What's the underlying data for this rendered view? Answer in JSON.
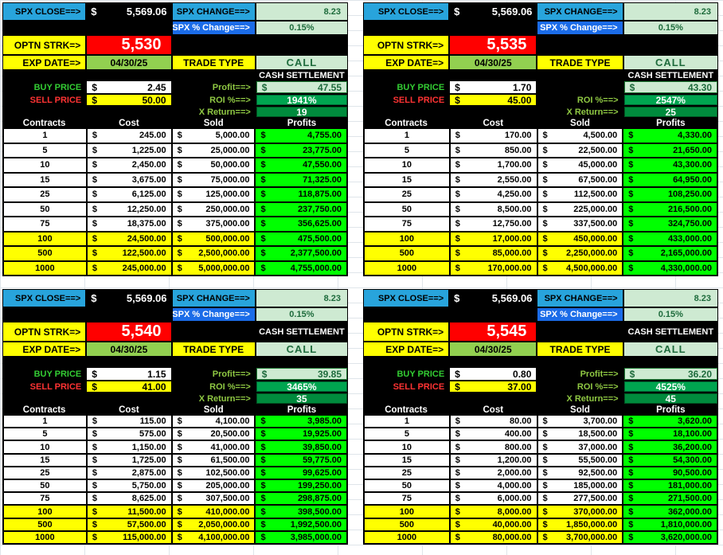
{
  "quadrants": [
    {
      "cur": "$",
      "spx_close_label": "SPX CLOSE==>",
      "spx_close_value": "5,569.06",
      "spx_change_label": "SPX CHANGE==>",
      "spx_change_value": "8.23",
      "spx_pct_label": "SPX % Change==>",
      "spx_pct_value": "0.15%",
      "optn_strk_label": "OPTN STRK=>",
      "optn_strk_value": "5,530",
      "cash_settlement_beside": "",
      "cash_settlement_below": "CASH SETTLEMENT",
      "exp_date_label": "EXP DATE=>",
      "exp_date_value": "04/30/25",
      "trade_type_label": "TRADE TYPE",
      "trade_type_value": "CALL",
      "buy_price_label": "BUY PRICE",
      "buy_price_value": "2.45",
      "profit_label": "Profit==>",
      "profit_value": "47.55",
      "sell_price_label": "SELL PRICE",
      "sell_price_value": "50.00",
      "roi_label": "ROI %==>",
      "roi_value": "1941%",
      "xreturn_label": "X Return==>",
      "xreturn_value": "19",
      "table": {
        "headers": [
          "Contracts",
          "Cost",
          "Sold",
          "Profits"
        ],
        "rows": [
          {
            "contracts": "1",
            "cost": "245.00",
            "sold": "5,000.00",
            "profits": "4,755.00",
            "highlight": false
          },
          {
            "contracts": "5",
            "cost": "1,225.00",
            "sold": "25,000.00",
            "profits": "23,775.00",
            "highlight": false
          },
          {
            "contracts": "10",
            "cost": "2,450.00",
            "sold": "50,000.00",
            "profits": "47,550.00",
            "highlight": false
          },
          {
            "contracts": "15",
            "cost": "3,675.00",
            "sold": "75,000.00",
            "profits": "71,325.00",
            "highlight": false
          },
          {
            "contracts": "25",
            "cost": "6,125.00",
            "sold": "125,000.00",
            "profits": "118,875.00",
            "highlight": false
          },
          {
            "contracts": "50",
            "cost": "12,250.00",
            "sold": "250,000.00",
            "profits": "237,750.00",
            "highlight": false
          },
          {
            "contracts": "75",
            "cost": "18,375.00",
            "sold": "375,000.00",
            "profits": "356,625.00",
            "highlight": false
          },
          {
            "contracts": "100",
            "cost": "24,500.00",
            "sold": "500,000.00",
            "profits": "475,500.00",
            "highlight": true
          },
          {
            "contracts": "500",
            "cost": "122,500.00",
            "sold": "2,500,000.00",
            "profits": "2,377,500.00",
            "highlight": true
          },
          {
            "contracts": "1000",
            "cost": "245,000.00",
            "sold": "5,000,000.00",
            "profits": "4,755,000.00",
            "highlight": true
          }
        ]
      }
    },
    {
      "cur": "$",
      "spx_close_label": "SPX CLOSE==>",
      "spx_close_value": "5,569.06",
      "spx_change_label": "SPX CHANGE==>",
      "spx_change_value": "8.23",
      "spx_pct_label": "SPX % Change==>",
      "spx_pct_value": "0.15%",
      "optn_strk_label": "OPTN STRK=>",
      "optn_strk_value": "5,535",
      "cash_settlement_beside": "",
      "cash_settlement_below": "CASH SETTLEMENT",
      "exp_date_label": "EXP DATE=>",
      "exp_date_value": "04/30/25",
      "trade_type_label": "TRADE TYPE",
      "trade_type_value": "CALL",
      "buy_price_label": "BUY PRICE",
      "buy_price_value": "1.70",
      "profit_label": "",
      "profit_value": "43.30",
      "sell_price_label": "SELL PRICE",
      "sell_price_value": "45.00",
      "roi_label": "ROI %==>",
      "roi_value": "2547%",
      "xreturn_label": "X Return==>",
      "xreturn_value": "25",
      "table": {
        "headers": [
          "Contracts",
          "Cost",
          "Sold",
          "Profits"
        ],
        "rows": [
          {
            "contracts": "1",
            "cost": "170.00",
            "sold": "4,500.00",
            "profits": "4,330.00",
            "highlight": false
          },
          {
            "contracts": "5",
            "cost": "850.00",
            "sold": "22,500.00",
            "profits": "21,650.00",
            "highlight": false
          },
          {
            "contracts": "10",
            "cost": "1,700.00",
            "sold": "45,000.00",
            "profits": "43,300.00",
            "highlight": false
          },
          {
            "contracts": "15",
            "cost": "2,550.00",
            "sold": "67,500.00",
            "profits": "64,950.00",
            "highlight": false
          },
          {
            "contracts": "25",
            "cost": "4,250.00",
            "sold": "112,500.00",
            "profits": "108,250.00",
            "highlight": false
          },
          {
            "contracts": "50",
            "cost": "8,500.00",
            "sold": "225,000.00",
            "profits": "216,500.00",
            "highlight": false
          },
          {
            "contracts": "75",
            "cost": "12,750.00",
            "sold": "337,500.00",
            "profits": "324,750.00",
            "highlight": false
          },
          {
            "contracts": "100",
            "cost": "17,000.00",
            "sold": "450,000.00",
            "profits": "433,000.00",
            "highlight": true
          },
          {
            "contracts": "500",
            "cost": "85,000.00",
            "sold": "2,250,000.00",
            "profits": "2,165,000.00",
            "highlight": true
          },
          {
            "contracts": "1000",
            "cost": "170,000.00",
            "sold": "4,500,000.00",
            "profits": "4,330,000.00",
            "highlight": true
          }
        ]
      }
    },
    {
      "cur": "$",
      "spx_close_label": "SPX CLOSE==>",
      "spx_close_value": "5,569.06",
      "spx_change_label": "SPX CHANGE==>",
      "spx_change_value": "8.23",
      "spx_pct_label": "SPX % Change==>",
      "spx_pct_value": "0.15%",
      "optn_strk_label": "OPTN STRK=>",
      "optn_strk_value": "5,540",
      "cash_settlement_beside": "CASH SETTLEMENT",
      "cash_settlement_below": "",
      "exp_date_label": "EXP DATE=>",
      "exp_date_value": "04/30/25",
      "trade_type_label": "TRADE TYPE",
      "trade_type_value": "CALL",
      "buy_price_label": "BUY PRICE",
      "buy_price_value": "1.15",
      "profit_label": "Profit==>",
      "profit_value": "39.85",
      "sell_price_label": "SELL PRICE",
      "sell_price_value": "41.00",
      "roi_label": "ROI %==>",
      "roi_value": "3465%",
      "xreturn_label": "X Return==>",
      "xreturn_value": "35",
      "table": {
        "headers": [
          "Contracts",
          "Cost",
          "Sold",
          "Profits"
        ],
        "rows": [
          {
            "contracts": "1",
            "cost": "115.00",
            "sold": "4,100.00",
            "profits": "3,985.00",
            "highlight": false
          },
          {
            "contracts": "5",
            "cost": "575.00",
            "sold": "20,500.00",
            "profits": "19,925.00",
            "highlight": false
          },
          {
            "contracts": "10",
            "cost": "1,150.00",
            "sold": "41,000.00",
            "profits": "39,850.00",
            "highlight": false
          },
          {
            "contracts": "15",
            "cost": "1,725.00",
            "sold": "61,500.00",
            "profits": "59,775.00",
            "highlight": false
          },
          {
            "contracts": "25",
            "cost": "2,875.00",
            "sold": "102,500.00",
            "profits": "99,625.00",
            "highlight": false
          },
          {
            "contracts": "50",
            "cost": "5,750.00",
            "sold": "205,000.00",
            "profits": "199,250.00",
            "highlight": false
          },
          {
            "contracts": "75",
            "cost": "8,625.00",
            "sold": "307,500.00",
            "profits": "298,875.00",
            "highlight": false
          },
          {
            "contracts": "100",
            "cost": "11,500.00",
            "sold": "410,000.00",
            "profits": "398,500.00",
            "highlight": true
          },
          {
            "contracts": "500",
            "cost": "57,500.00",
            "sold": "2,050,000.00",
            "profits": "1,992,500.00",
            "highlight": true
          },
          {
            "contracts": "1000",
            "cost": "115,000.00",
            "sold": "4,100,000.00",
            "profits": "3,985,000.00",
            "highlight": true
          }
        ]
      }
    },
    {
      "cur": "$",
      "spx_close_label": "SPX CLOSE==>",
      "spx_close_value": "5,569.06",
      "spx_change_label": "SPX CHANGE==>",
      "spx_change_value": "8.23",
      "spx_pct_label": "SPX % Change==>",
      "spx_pct_value": "0.15%",
      "optn_strk_label": "OPTN STRK=>",
      "optn_strk_value": "5,545",
      "cash_settlement_beside": "CASH SETTLEMENT",
      "cash_settlement_below": "",
      "exp_date_label": "EXP DATE=>",
      "exp_date_value": "04/30/25",
      "trade_type_label": "TRADE TYPE",
      "trade_type_value": "CALL",
      "buy_price_label": "BUY PRICE",
      "buy_price_value": "0.80",
      "profit_label": "Profit==>",
      "profit_value": "36.20",
      "sell_price_label": "SELL PRICE",
      "sell_price_value": "37.00",
      "roi_label": "ROI %==>",
      "roi_value": "4525%",
      "xreturn_label": "X Return==>",
      "xreturn_value": "45",
      "table": {
        "headers": [
          "Contracts",
          "Cost",
          "Sold",
          "Profits"
        ],
        "rows": [
          {
            "contracts": "1",
            "cost": "80.00",
            "sold": "3,700.00",
            "profits": "3,620.00",
            "highlight": false
          },
          {
            "contracts": "5",
            "cost": "400.00",
            "sold": "18,500.00",
            "profits": "18,100.00",
            "highlight": false
          },
          {
            "contracts": "10",
            "cost": "800.00",
            "sold": "37,000.00",
            "profits": "36,200.00",
            "highlight": false
          },
          {
            "contracts": "15",
            "cost": "1,200.00",
            "sold": "55,500.00",
            "profits": "54,300.00",
            "highlight": false
          },
          {
            "contracts": "25",
            "cost": "2,000.00",
            "sold": "92,500.00",
            "profits": "90,500.00",
            "highlight": false
          },
          {
            "contracts": "50",
            "cost": "4,000.00",
            "sold": "185,000.00",
            "profits": "181,000.00",
            "highlight": false
          },
          {
            "contracts": "75",
            "cost": "6,000.00",
            "sold": "277,500.00",
            "profits": "271,500.00",
            "highlight": false
          },
          {
            "contracts": "100",
            "cost": "8,000.00",
            "sold": "370,000.00",
            "profits": "362,000.00",
            "highlight": true
          },
          {
            "contracts": "500",
            "cost": "40,000.00",
            "sold": "1,850,000.00",
            "profits": "1,810,000.00",
            "highlight": true
          },
          {
            "contracts": "1000",
            "cost": "80,000.00",
            "sold": "3,700,000.00",
            "profits": "3,620,000.00",
            "highlight": true
          }
        ]
      }
    }
  ],
  "colors": {
    "cyan_header": "#28A4DC",
    "royal_blue": "#1B6CE8",
    "light_green_cell": "#CEEAD2",
    "dark_green_text": "#1E6B3C",
    "strike_red": "#FF0000",
    "cell_yellow": "#FFFF00",
    "date_green": "#92D050",
    "roi_green": "#00A550",
    "xreturn_green": "#008B3D",
    "profit_lime": "#00FF00",
    "arrow_label_green": "#8FC843",
    "buy_label_green": "#33CC33",
    "sell_label_red": "#FF3333",
    "panel_black": "#000000"
  }
}
